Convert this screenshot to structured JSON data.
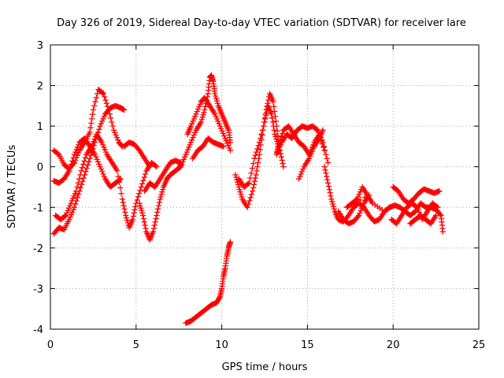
{
  "chart_data": {
    "type": "scatter",
    "title": "Day 326 of 2019, Sidereal Day-to-day VTEC variation (SDTVAR) for receiver lare",
    "xlabel": "GPS time / hours",
    "ylabel": "SDTVAR / TECUs",
    "xlim": [
      0,
      25
    ],
    "ylim": [
      -4,
      3
    ],
    "xticks": [
      "0",
      "5",
      "10",
      "15",
      "20",
      "25"
    ],
    "yticks": [
      "-4",
      "-3",
      "-2",
      "-1",
      "0",
      "1",
      "2",
      "3"
    ],
    "grid": true,
    "marker": "plus",
    "color": "#ff0000",
    "series": [
      {
        "name": "SDTVAR",
        "points": [
          [
            0.2,
            -1.65
          ],
          [
            0.5,
            -1.5
          ],
          [
            0.8,
            -1.55
          ],
          [
            1.1,
            -1.3
          ],
          [
            1.4,
            -1.0
          ],
          [
            1.7,
            -0.6
          ],
          [
            2.0,
            -0.2
          ],
          [
            2.3,
            0.2
          ],
          [
            2.6,
            0.6
          ],
          [
            2.9,
            1.0
          ],
          [
            3.2,
            1.3
          ],
          [
            3.5,
            1.45
          ],
          [
            3.8,
            1.5
          ],
          [
            4.1,
            1.45
          ],
          [
            4.3,
            1.4
          ],
          [
            0.2,
            0.4
          ],
          [
            0.5,
            0.3
          ],
          [
            0.8,
            0.05
          ],
          [
            1.1,
            -0.05
          ],
          [
            1.4,
            0.1
          ],
          [
            1.7,
            0.4
          ],
          [
            2.0,
            0.6
          ],
          [
            2.3,
            0.85
          ],
          [
            2.5,
            1.4
          ],
          [
            2.8,
            1.9
          ],
          [
            3.1,
            1.8
          ],
          [
            3.4,
            1.4
          ],
          [
            3.7,
            0.9
          ],
          [
            4.0,
            0.6
          ],
          [
            4.2,
            0.5
          ],
          [
            0.2,
            -0.35
          ],
          [
            0.5,
            -0.4
          ],
          [
            0.8,
            -0.3
          ],
          [
            1.1,
            -0.1
          ],
          [
            1.4,
            0.3
          ],
          [
            1.7,
            0.6
          ],
          [
            2.0,
            0.7
          ],
          [
            2.3,
            0.5
          ],
          [
            2.6,
            0.3
          ],
          [
            2.9,
            0.0
          ],
          [
            3.2,
            -0.3
          ],
          [
            3.5,
            -0.5
          ],
          [
            3.8,
            -0.4
          ],
          [
            4.1,
            -0.3
          ],
          [
            0.3,
            -1.2
          ],
          [
            0.6,
            -1.3
          ],
          [
            0.9,
            -1.2
          ],
          [
            1.2,
            -0.9
          ],
          [
            1.5,
            -0.6
          ],
          [
            1.8,
            -0.1
          ],
          [
            2.1,
            0.3
          ],
          [
            2.4,
            0.5
          ],
          [
            2.7,
            0.8
          ],
          [
            3.0,
            0.6
          ],
          [
            3.3,
            0.3
          ],
          [
            3.6,
            0.1
          ],
          [
            3.9,
            -0.1
          ],
          [
            4.2,
            -0.8
          ],
          [
            4.4,
            -1.2
          ],
          [
            4.6,
            -1.5
          ],
          [
            4.8,
            -1.3
          ],
          [
            5.0,
            -0.9
          ],
          [
            5.3,
            -0.5
          ],
          [
            5.6,
            -0.1
          ],
          [
            5.9,
            0.1
          ],
          [
            6.2,
            0.0
          ],
          [
            4.3,
            0.5
          ],
          [
            4.6,
            0.6
          ],
          [
            4.9,
            0.55
          ],
          [
            5.2,
            0.4
          ],
          [
            5.5,
            0.2
          ],
          [
            5.8,
            0.0
          ],
          [
            5.2,
            -0.9
          ],
          [
            5.4,
            -1.2
          ],
          [
            5.6,
            -1.6
          ],
          [
            5.8,
            -1.8
          ],
          [
            6.0,
            -1.6
          ],
          [
            6.2,
            -1.2
          ],
          [
            6.4,
            -0.8
          ],
          [
            6.6,
            -0.5
          ],
          [
            6.8,
            -0.3
          ],
          [
            7.0,
            -0.2
          ],
          [
            7.3,
            -0.1
          ],
          [
            7.6,
            0.0
          ],
          [
            5.5,
            -0.6
          ],
          [
            5.8,
            -0.4
          ],
          [
            6.1,
            -0.5
          ],
          [
            6.4,
            -0.3
          ],
          [
            6.7,
            -0.1
          ],
          [
            7.0,
            0.1
          ],
          [
            7.3,
            0.15
          ],
          [
            7.6,
            0.1
          ],
          [
            7.6,
            0.0
          ],
          [
            7.9,
            0.3
          ],
          [
            8.2,
            0.6
          ],
          [
            8.5,
            0.9
          ],
          [
            8.8,
            1.1
          ],
          [
            9.0,
            1.4
          ],
          [
            9.2,
            1.8
          ],
          [
            9.3,
            2.2
          ],
          [
            9.4,
            2.25
          ],
          [
            9.5,
            2.1
          ],
          [
            9.6,
            1.8
          ],
          [
            9.8,
            1.5
          ],
          [
            10.0,
            1.3
          ],
          [
            10.2,
            1.1
          ],
          [
            10.4,
            0.9
          ],
          [
            10.5,
            0.6
          ],
          [
            8.0,
            0.8
          ],
          [
            8.2,
            1.0
          ],
          [
            8.5,
            1.3
          ],
          [
            8.8,
            1.6
          ],
          [
            9.0,
            1.7
          ],
          [
            9.3,
            1.5
          ],
          [
            9.6,
            1.3
          ],
          [
            9.9,
            1.0
          ],
          [
            10.2,
            0.7
          ],
          [
            10.5,
            0.4
          ],
          [
            8.3,
            0.2
          ],
          [
            8.6,
            0.4
          ],
          [
            8.9,
            0.5
          ],
          [
            9.2,
            0.7
          ],
          [
            9.5,
            0.6
          ],
          [
            9.8,
            0.55
          ],
          [
            10.1,
            0.5
          ],
          [
            7.9,
            -3.85
          ],
          [
            8.2,
            -3.8
          ],
          [
            8.5,
            -3.7
          ],
          [
            8.8,
            -3.6
          ],
          [
            9.1,
            -3.5
          ],
          [
            9.4,
            -3.4
          ],
          [
            9.7,
            -3.35
          ],
          [
            9.9,
            -3.2
          ],
          [
            10.0,
            -3.0
          ],
          [
            10.1,
            -2.7
          ],
          [
            10.2,
            -2.5
          ],
          [
            10.3,
            -2.2
          ],
          [
            10.4,
            -2.0
          ],
          [
            10.5,
            -1.85
          ],
          [
            10.8,
            -0.2
          ],
          [
            11.0,
            -0.5
          ],
          [
            11.2,
            -0.8
          ],
          [
            11.5,
            -1.0
          ],
          [
            11.8,
            -0.6
          ],
          [
            12.0,
            -0.2
          ],
          [
            12.2,
            0.3
          ],
          [
            12.4,
            0.9
          ],
          [
            12.6,
            1.4
          ],
          [
            12.8,
            1.8
          ],
          [
            13.0,
            1.6
          ],
          [
            13.2,
            1.0
          ],
          [
            13.4,
            0.4
          ],
          [
            13.6,
            0.0
          ],
          [
            11.0,
            -0.3
          ],
          [
            11.3,
            -0.5
          ],
          [
            11.6,
            -0.4
          ],
          [
            11.9,
            0.2
          ],
          [
            12.2,
            0.6
          ],
          [
            12.5,
            1.1
          ],
          [
            12.7,
            1.5
          ],
          [
            12.9,
            1.3
          ],
          [
            13.1,
            0.8
          ],
          [
            13.3,
            0.5
          ],
          [
            13.2,
            0.3
          ],
          [
            13.5,
            0.6
          ],
          [
            13.8,
            0.8
          ],
          [
            14.1,
            0.7
          ],
          [
            14.4,
            0.9
          ],
          [
            14.7,
            1.0
          ],
          [
            15.0,
            0.95
          ],
          [
            15.3,
            1.0
          ],
          [
            15.6,
            0.9
          ],
          [
            15.9,
            0.6
          ],
          [
            16.2,
            0.1
          ],
          [
            13.3,
            0.5
          ],
          [
            13.6,
            0.9
          ],
          [
            13.9,
            1.0
          ],
          [
            14.2,
            0.8
          ],
          [
            14.5,
            0.6
          ],
          [
            14.8,
            0.5
          ],
          [
            15.1,
            0.3
          ],
          [
            15.4,
            0.6
          ],
          [
            15.7,
            0.8
          ],
          [
            16.0,
            0.4
          ],
          [
            14.5,
            -0.3
          ],
          [
            14.8,
            0.0
          ],
          [
            15.1,
            0.2
          ],
          [
            15.4,
            0.5
          ],
          [
            15.7,
            0.7
          ],
          [
            15.9,
            0.9
          ],
          [
            16.0,
            0.0
          ],
          [
            16.2,
            -0.4
          ],
          [
            16.4,
            -0.8
          ],
          [
            16.6,
            -1.1
          ],
          [
            16.8,
            -1.3
          ],
          [
            17.1,
            -1.35
          ],
          [
            17.4,
            -1.2
          ],
          [
            17.7,
            -1.0
          ],
          [
            18.0,
            -0.9
          ],
          [
            18.3,
            -1.0
          ],
          [
            18.6,
            -1.2
          ],
          [
            18.9,
            -1.35
          ],
          [
            19.2,
            -1.3
          ],
          [
            19.5,
            -1.1
          ],
          [
            19.8,
            -1.0
          ],
          [
            16.8,
            -1.1
          ],
          [
            17.1,
            -1.3
          ],
          [
            17.4,
            -1.4
          ],
          [
            17.7,
            -1.35
          ],
          [
            18.0,
            -1.2
          ],
          [
            18.3,
            -0.9
          ],
          [
            18.6,
            -0.7
          ],
          [
            17.3,
            -1.0
          ],
          [
            17.6,
            -0.9
          ],
          [
            17.9,
            -0.8
          ],
          [
            18.2,
            -0.5
          ],
          [
            18.5,
            -0.7
          ],
          [
            18.8,
            -0.9
          ],
          [
            19.5,
            -1.1
          ],
          [
            19.8,
            -1.0
          ],
          [
            20.1,
            -0.95
          ],
          [
            20.4,
            -1.0
          ],
          [
            20.7,
            -1.1
          ],
          [
            21.0,
            -1.2
          ],
          [
            21.3,
            -1.1
          ],
          [
            21.6,
            -0.9
          ],
          [
            21.9,
            -1.0
          ],
          [
            22.2,
            -1.0
          ],
          [
            22.5,
            -1.05
          ],
          [
            22.8,
            -1.2
          ],
          [
            22.9,
            -1.6
          ],
          [
            19.9,
            -1.3
          ],
          [
            20.2,
            -1.4
          ],
          [
            20.5,
            -1.2
          ],
          [
            20.8,
            -1.0
          ],
          [
            21.1,
            -0.9
          ],
          [
            21.4,
            -1.0
          ],
          [
            21.7,
            -1.3
          ],
          [
            22.0,
            -1.1
          ],
          [
            22.3,
            -0.9
          ],
          [
            22.6,
            -1.0
          ],
          [
            20.0,
            -0.5
          ],
          [
            20.3,
            -0.6
          ],
          [
            20.6,
            -0.8
          ],
          [
            20.9,
            -0.9
          ],
          [
            21.2,
            -0.8
          ],
          [
            21.5,
            -0.65
          ],
          [
            21.8,
            -0.55
          ],
          [
            22.1,
            -0.6
          ],
          [
            22.4,
            -0.65
          ],
          [
            22.7,
            -0.6
          ],
          [
            21.0,
            -1.4
          ],
          [
            21.3,
            -1.3
          ],
          [
            21.6,
            -1.2
          ],
          [
            21.9,
            -1.3
          ],
          [
            22.2,
            -1.4
          ],
          [
            22.5,
            -1.2
          ]
        ]
      }
    ]
  }
}
